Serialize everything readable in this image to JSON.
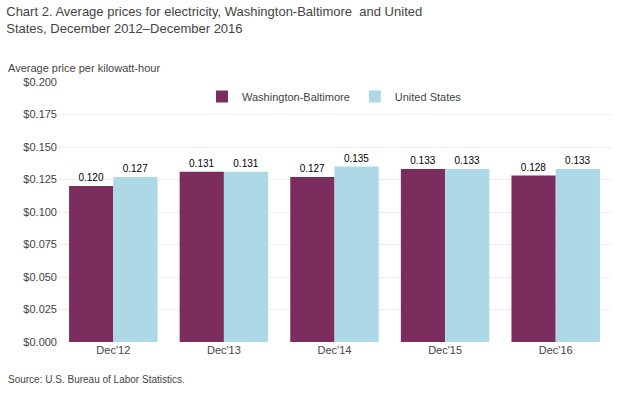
{
  "chart_data": {
    "type": "bar",
    "title": "Chart 2. Average prices for electricity, Washington-Baltimore  and United States, December 2012–December 2016",
    "ylabel": "Average price per kilowatt-hour",
    "footer": "Source: U.S. Bureau of Labor Statistics.",
    "categories": [
      "Dec'12",
      "Dec'13",
      "Dec'14",
      "Dec'15",
      "Dec'16"
    ],
    "series": [
      {
        "name": "Washington-Baltimore",
        "color": "#7B2D5E",
        "values": [
          0.12,
          0.131,
          0.127,
          0.133,
          0.128
        ],
        "value_labels": [
          "0.120",
          "0.131",
          "0.127",
          "0.133",
          "0.128"
        ]
      },
      {
        "name": "United States",
        "color": "#ADD8E6",
        "values": [
          0.127,
          0.131,
          0.135,
          0.133,
          0.133
        ],
        "value_labels": [
          "0.127",
          "0.131",
          "0.135",
          "0.133",
          "0.133"
        ]
      }
    ],
    "ylim": [
      0.0,
      0.2
    ],
    "yticks": [
      {
        "value": 0.0,
        "label": "$0.000"
      },
      {
        "value": 0.025,
        "label": "$0.025"
      },
      {
        "value": 0.05,
        "label": "$0.050"
      },
      {
        "value": 0.075,
        "label": "$0.075"
      },
      {
        "value": 0.1,
        "label": "$0.100"
      },
      {
        "value": 0.125,
        "label": "$0.125"
      },
      {
        "value": 0.15,
        "label": "$0.150"
      },
      {
        "value": 0.175,
        "label": "$0.175"
      },
      {
        "value": 0.2,
        "label": "$0.200"
      }
    ],
    "grid": true,
    "legend": "upper center",
    "data_labels": true
  }
}
